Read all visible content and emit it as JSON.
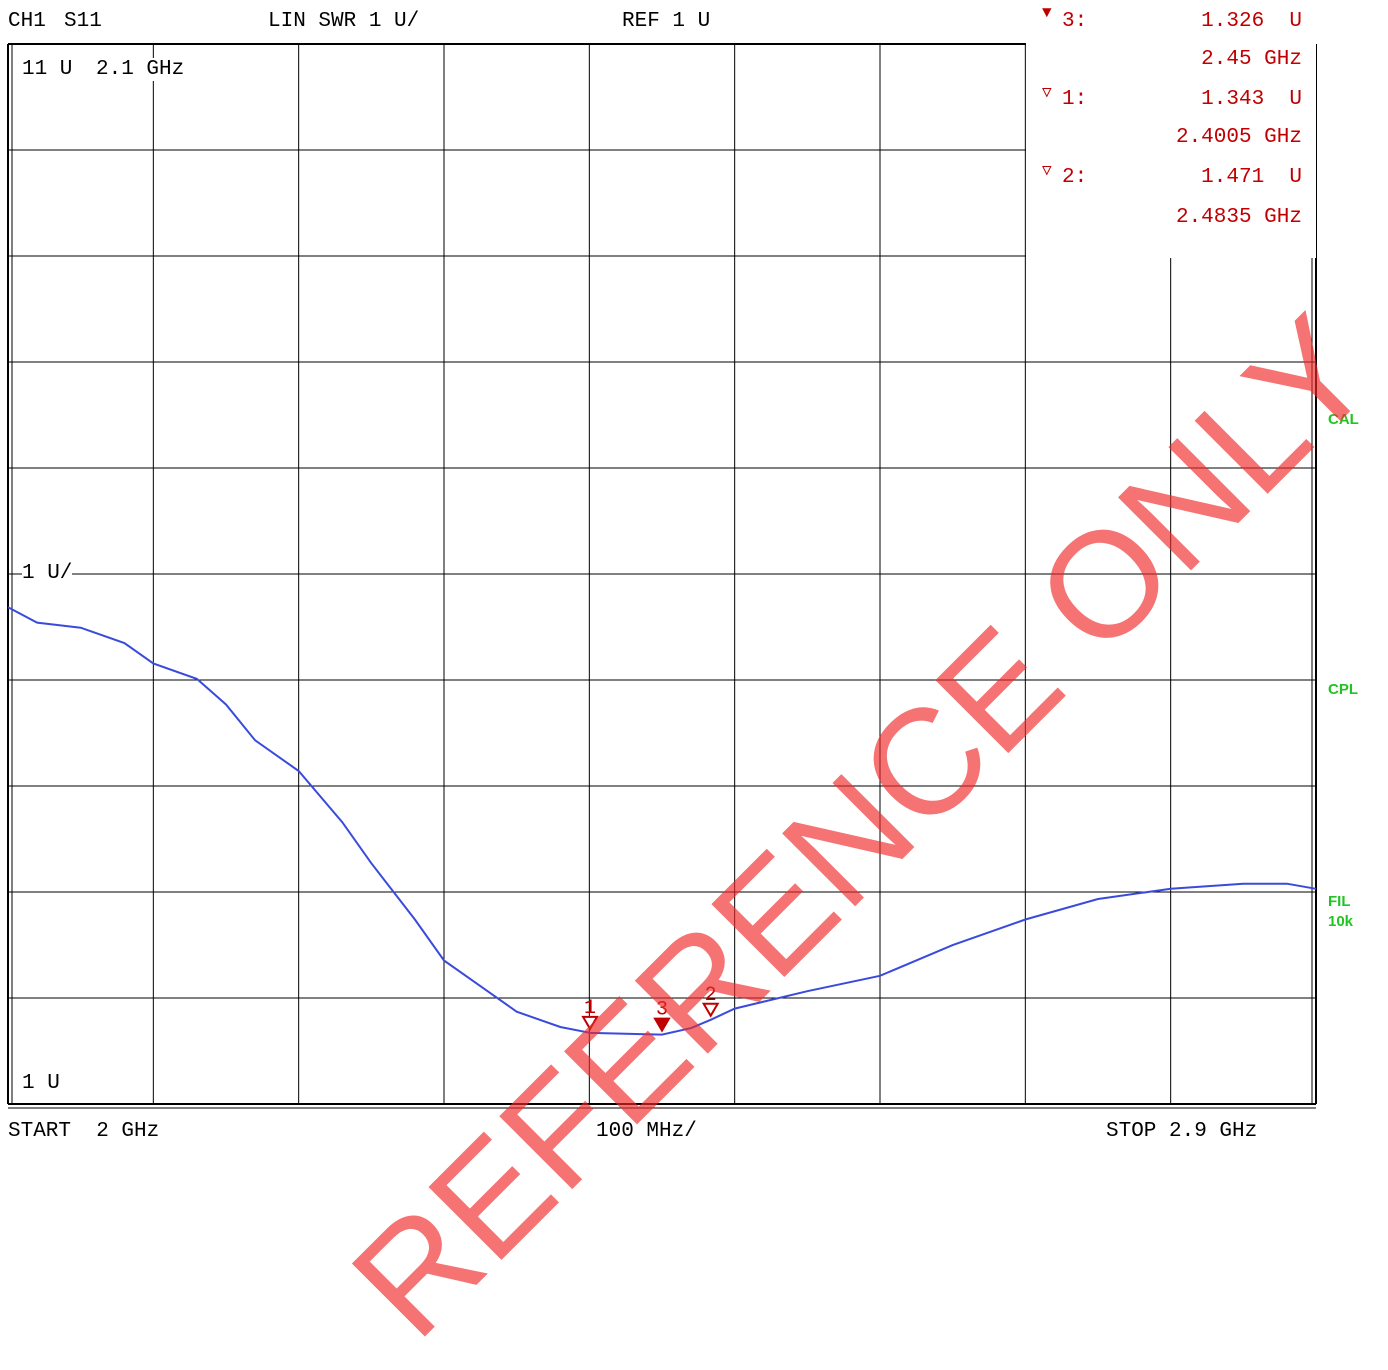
{
  "header": {
    "channel": "CH1",
    "param": "S11",
    "format": "LIN SWR 1 U/",
    "ref": "REF 1 U"
  },
  "grid_labels": {
    "top_left": "11 U",
    "top_freq": "2.1 GHz",
    "mid_scale": "1 U/",
    "bottom_ref": "1 U"
  },
  "markers": [
    {
      "id": "3",
      "label": "3:",
      "value": "1.326",
      "unit": "U",
      "freq": "2.45 GHz",
      "symbol": "filled-triangle"
    },
    {
      "id": "1",
      "label": "1:",
      "value": "1.343",
      "unit": "U",
      "freq": "2.4005 GHz",
      "symbol": "hollow-triangle"
    },
    {
      "id": "2",
      "label": "2:",
      "value": "1.471",
      "unit": "U",
      "freq": "2.4835 GHz",
      "symbol": "hollow-triangle"
    }
  ],
  "side_labels": {
    "cal": "CAL",
    "cpl": "CPL",
    "fil": "FIL",
    "fil_value": "10k"
  },
  "footer": {
    "start": "START  2 GHz",
    "span": "100 MHz/",
    "stop": "STOP 2.9 GHz"
  },
  "watermark": "REFERENCE ONLY",
  "colors": {
    "trace": "#3a4bdc",
    "marker": "#c00000",
    "side": "#22c422",
    "watermark": "#f02828"
  },
  "chart_data": {
    "type": "line",
    "x_unit": "GHz",
    "y_unit": "U",
    "xlim": [
      2.0,
      2.9
    ],
    "ylim": [
      1,
      11
    ],
    "x": [
      2.0,
      2.02,
      2.05,
      2.08,
      2.1,
      2.13,
      2.15,
      2.17,
      2.2,
      2.23,
      2.25,
      2.28,
      2.3,
      2.33,
      2.35,
      2.38,
      2.4,
      2.4005,
      2.45,
      2.47,
      2.4835,
      2.5,
      2.55,
      2.6,
      2.65,
      2.7,
      2.75,
      2.8,
      2.85,
      2.88,
      2.9
    ],
    "y": [
      5.5,
      5.35,
      5.3,
      5.15,
      4.95,
      4.8,
      4.55,
      4.2,
      3.9,
      3.4,
      3.0,
      2.45,
      2.05,
      1.75,
      1.55,
      1.4,
      1.345,
      1.343,
      1.326,
      1.39,
      1.471,
      1.58,
      1.75,
      1.9,
      2.2,
      2.45,
      2.65,
      2.75,
      2.8,
      2.8,
      2.75
    ]
  }
}
